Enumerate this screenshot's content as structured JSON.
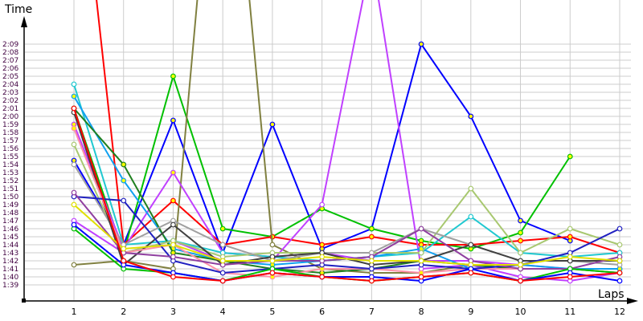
{
  "chart_data": {
    "type": "line",
    "xlabel": "Laps",
    "ylabel": "Time",
    "x": [
      1,
      2,
      3,
      4,
      5,
      6,
      7,
      8,
      9,
      10,
      11,
      12
    ],
    "y_ticks": [
      "1:39",
      "1:40",
      "1:41",
      "1:42",
      "1:43",
      "1:44",
      "1:45",
      "1:46",
      "1:47",
      "1:48",
      "1:49",
      "1:50",
      "1:51",
      "1:52",
      "1:53",
      "1:54",
      "1:55",
      "1:56",
      "1:57",
      "1:58",
      "1:59",
      "2:00",
      "2:01",
      "2:02",
      "2:03",
      "2:04",
      "2:05",
      "2:06",
      "2:07",
      "2:08",
      "2:09"
    ],
    "grid": true,
    "series": [
      {
        "color": "#0000ff",
        "marker_fill": "#ffff00",
        "values": [
          "1:54.5",
          "1:44",
          "1:59.5",
          "1:43",
          "1:59",
          "1:43.5",
          "1:46",
          "2:09",
          "2:00",
          "1:47",
          "1:44.5",
          null
        ]
      },
      {
        "color": "#00c000",
        "marker_fill": "#ffff00",
        "values": [
          "2:01",
          "1:43",
          "2:05",
          "1:46",
          "1:45",
          "1:48.5",
          "1:46",
          "1:44.5",
          "1:43.5",
          "1:45.5",
          "1:55",
          null
        ]
      },
      {
        "color": "#ff0000",
        "marker_fill": "#ffff00",
        "values": [
          "2:40",
          "1:44",
          "1:49.5",
          "1:44",
          "1:45",
          "1:44",
          "1:45",
          "1:44",
          "1:44",
          "1:44.5",
          "1:45",
          "1:43"
        ]
      },
      {
        "color": "#808040",
        "marker_fill": "#ffffff",
        "values": [
          "1:41.5",
          "1:42",
          "1:41",
          "2:50",
          "1:44",
          "1:41",
          "1:40.5",
          "1:40.5",
          "1:41.5",
          "1:41",
          "1:41",
          "1:41"
        ]
      },
      {
        "color": "#c040ff",
        "marker_fill": "#ffffff",
        "values": [
          "1:47",
          "1:43",
          "1:44.5",
          "1:42",
          "1:42",
          "1:49",
          "2:20",
          "1:41",
          "1:41.5",
          "1:40",
          "1:39.5",
          "1:40.5"
        ]
      },
      {
        "color": "#c040ff",
        "marker_fill": "#ffff00",
        "values": [
          "1:59",
          "1:43.5",
          "1:53",
          "1:43",
          "1:42.5",
          "1:43",
          "1:42",
          "1:42",
          "1:42",
          "1:41.5",
          "1:41",
          "1:41"
        ]
      },
      {
        "color": "#20c8d0",
        "marker_fill": "#ffffff",
        "values": [
          "2:04",
          "1:44",
          "1:44.5",
          "1:43",
          "1:42.5",
          "1:42",
          "1:42.5",
          "1:43",
          "1:47.5",
          "1:43",
          "1:42.5",
          "1:43"
        ]
      },
      {
        "color": "#10a0f0",
        "marker_fill": "#ffff00",
        "values": [
          "2:02.5",
          "1:52",
          "1:43.5",
          "1:42",
          "1:41.5",
          "1:42",
          "1:42.5",
          "1:43.5",
          "1:41",
          "1:41.5",
          "1:41",
          "1:41"
        ]
      },
      {
        "color": "#208020",
        "marker_fill": "#ffff00",
        "values": [
          "2:01",
          "1:54",
          "1:43",
          "1:42",
          "1:41",
          "1:40.5",
          "1:41",
          "1:42",
          "1:41.5",
          "1:41",
          "1:41",
          "1:40.5"
        ]
      },
      {
        "color": "#a8c870",
        "marker_fill": "#ffffff",
        "values": [
          "1:56.5",
          "1:43",
          "1:44.5",
          "1:42.5",
          "1:43",
          "1:43",
          "1:43",
          "1:43",
          "1:51",
          "1:43",
          "1:46",
          "1:44"
        ]
      },
      {
        "color": "#a0a0a0",
        "marker_fill": "#ffffff",
        "values": [
          "1:54",
          "1:44",
          "1:47",
          "1:44",
          "1:42",
          "1:43",
          "1:43",
          "1:46",
          "1:44",
          "1:42",
          "1:42",
          "1:41.5"
        ]
      },
      {
        "color": "#404040",
        "marker_fill": "#ffffff",
        "values": [
          "2:00.5",
          "1:41.5",
          "1:46.5",
          "1:41.5",
          "1:42.5",
          "1:43",
          "1:41.5",
          "1:42",
          "1:44",
          "1:42",
          "1:42",
          "1:42"
        ]
      },
      {
        "color": "#ff90a8",
        "marker_fill": "#ffff00",
        "values": [
          "1:58.5",
          "1:43",
          "1:44",
          "1:40.5",
          "1:40",
          "1:41",
          "1:41",
          "1:40.5",
          "1:41",
          "1:41",
          "1:41",
          "1:40.5"
        ]
      },
      {
        "color": "#2020c0",
        "marker_fill": "#ffffff",
        "values": [
          "1:50",
          "1:49.5",
          "1:42",
          "1:40.5",
          "1:41",
          "1:41.5",
          "1:41",
          "1:41.5",
          "1:41",
          "1:41.5",
          "1:43",
          "1:46"
        ]
      },
      {
        "color": "#9040a0",
        "marker_fill": "#ffffff",
        "values": [
          "1:50.5",
          "1:43",
          "1:42.5",
          "1:41.5",
          "1:42",
          "1:42",
          "1:42.5",
          "1:46",
          "1:42",
          "1:41",
          "1:41",
          "1:42.5"
        ]
      },
      {
        "color": "#e0e000",
        "marker_fill": "#ffffff",
        "values": [
          "1:49",
          "1:43.5",
          "1:44",
          "1:42",
          "1:42",
          "1:42.5",
          "1:42",
          "1:42",
          "1:41.5",
          "1:41.5",
          "1:42.5",
          "1:42"
        ]
      },
      {
        "color": "#00c000",
        "marker_fill": "#ffffff",
        "values": [
          "1:46",
          "1:41",
          "1:40.5",
          "1:39.5",
          "1:41",
          "1:40",
          "1:39.5",
          "1:40",
          "1:40.5",
          "1:39.5",
          "1:41",
          "1:40.5"
        ]
      },
      {
        "color": "#0000ff",
        "marker_fill": "#ffffff",
        "values": [
          "1:46.5",
          "1:41.5",
          "1:40.5",
          "1:39.5",
          "1:40.5",
          "1:40",
          "1:40",
          "1:39.5",
          "1:41",
          "1:39.5",
          "1:40.5",
          "1:39.5"
        ]
      },
      {
        "color": "#ff0000",
        "marker_fill": "#ffffff",
        "values": [
          "2:01",
          "1:42",
          "1:40",
          "1:39.5",
          "1:40.5",
          "1:40",
          "1:39.5",
          "1:40",
          "1:40.5",
          "1:39.5",
          "1:40",
          "1:40.5"
        ]
      }
    ]
  }
}
